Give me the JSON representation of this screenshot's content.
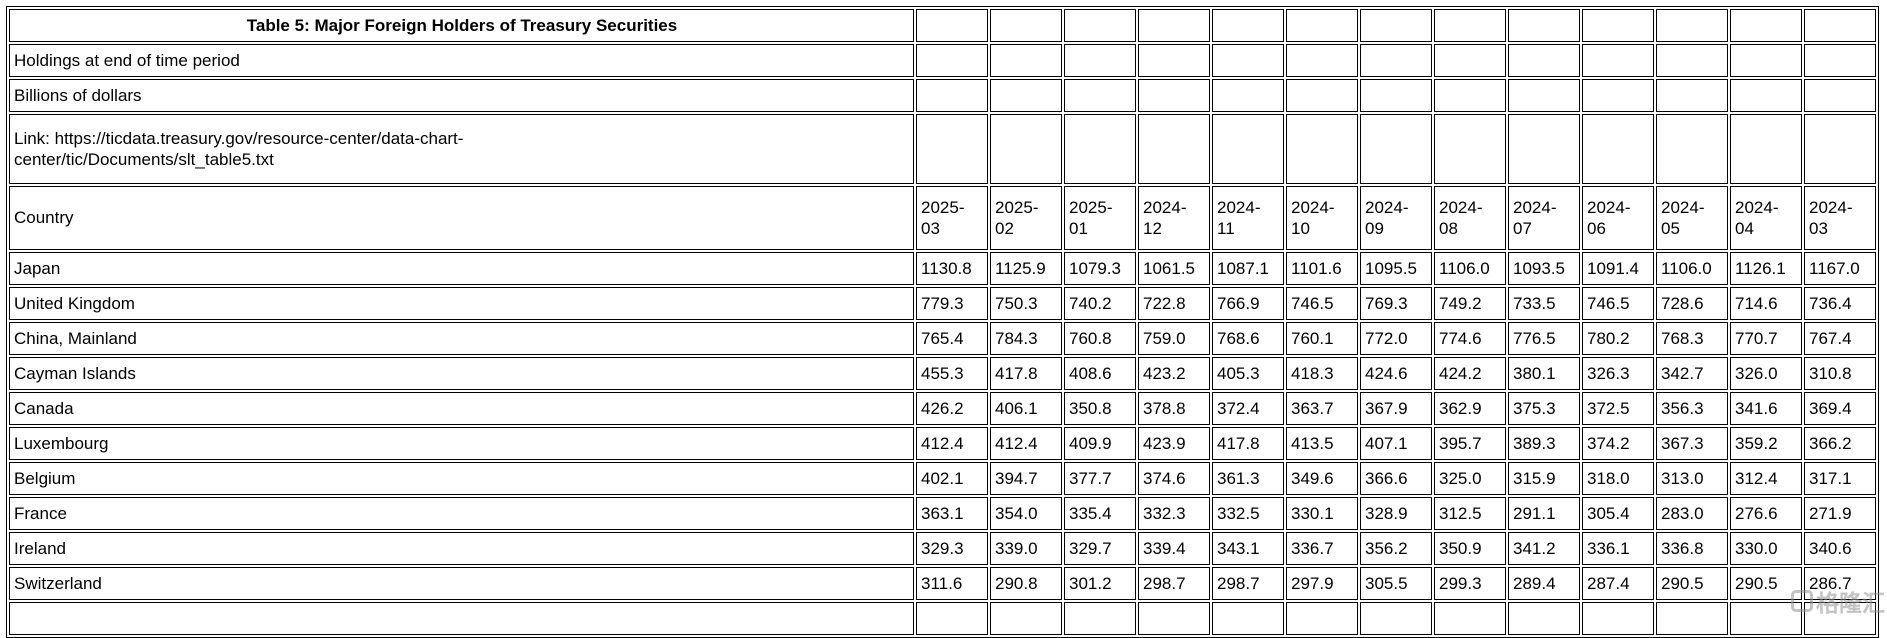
{
  "page": {
    "title": "Table 5: Major Foreign Holders of Treasury Securities",
    "holdings_note": "Holdings at end of time period",
    "units_note": "Billions of dollars",
    "source_link": "Link: https://ticdata.treasury.gov/resource-center/data-chart-center/tic/Documents/slt_table5.txt"
  },
  "table": {
    "country_header": "Country",
    "columns": [
      "2025-03",
      "2025-02",
      "2025-01",
      "2024-12",
      "2024-11",
      "2024-10",
      "2024-09",
      "2024-08",
      "2024-07",
      "2024-06",
      "2024-05",
      "2024-04",
      "2024-03"
    ],
    "rows": [
      {
        "country": "Japan",
        "values": [
          "1130.8",
          "1125.9",
          "1079.3",
          "1061.5",
          "1087.1",
          "1101.6",
          "1095.5",
          "1106.0",
          "1093.5",
          "1091.4",
          "1106.0",
          "1126.1",
          "1167.0"
        ]
      },
      {
        "country": "United Kingdom",
        "values": [
          "779.3",
          "750.3",
          "740.2",
          "722.8",
          "766.9",
          "746.5",
          "769.3",
          "749.2",
          "733.5",
          "746.5",
          "728.6",
          "714.6",
          "736.4"
        ]
      },
      {
        "country": "China, Mainland",
        "values": [
          "765.4",
          "784.3",
          "760.8",
          "759.0",
          "768.6",
          "760.1",
          "772.0",
          "774.6",
          "776.5",
          "780.2",
          "768.3",
          "770.7",
          "767.4"
        ]
      },
      {
        "country": "Cayman Islands",
        "values": [
          "455.3",
          "417.8",
          "408.6",
          "423.2",
          "405.3",
          "418.3",
          "424.6",
          "424.2",
          "380.1",
          "326.3",
          "342.7",
          "326.0",
          "310.8"
        ]
      },
      {
        "country": "Canada",
        "values": [
          "426.2",
          "406.1",
          "350.8",
          "378.8",
          "372.4",
          "363.7",
          "367.9",
          "362.9",
          "375.3",
          "372.5",
          "356.3",
          "341.6",
          "369.4"
        ]
      },
      {
        "country": "Luxembourg",
        "values": [
          "412.4",
          "412.4",
          "409.9",
          "423.9",
          "417.8",
          "413.5",
          "407.1",
          "395.7",
          "389.3",
          "374.2",
          "367.3",
          "359.2",
          "366.2"
        ]
      },
      {
        "country": "Belgium",
        "values": [
          "402.1",
          "394.7",
          "377.7",
          "374.6",
          "361.3",
          "349.6",
          "366.6",
          "325.0",
          "315.9",
          "318.0",
          "313.0",
          "312.4",
          "317.1"
        ]
      },
      {
        "country": "France",
        "values": [
          "363.1",
          "354.0",
          "335.4",
          "332.3",
          "332.5",
          "330.1",
          "328.9",
          "312.5",
          "291.1",
          "305.4",
          "283.0",
          "276.6",
          "271.9"
        ]
      },
      {
        "country": "Ireland",
        "values": [
          "329.3",
          "339.0",
          "329.7",
          "339.4",
          "343.1",
          "336.7",
          "356.2",
          "350.9",
          "341.2",
          "336.1",
          "336.8",
          "330.0",
          "340.6"
        ]
      },
      {
        "country": "Switzerland",
        "values": [
          "311.6",
          "290.8",
          "301.2",
          "298.7",
          "298.7",
          "297.9",
          "305.5",
          "299.3",
          "289.4",
          "287.4",
          "290.5",
          "290.5",
          "286.7"
        ]
      }
    ]
  },
  "watermark": {
    "text": "格隆汇"
  },
  "layout_hints": {
    "first_col_width": 905,
    "data_col_width": 72,
    "data_col_count": 13
  }
}
